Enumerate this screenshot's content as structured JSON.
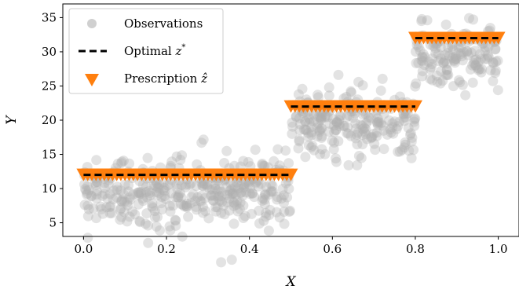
{
  "chart_data": {
    "type": "scatter",
    "xlabel": "X",
    "ylabel": "Y",
    "xlim": [
      -0.05,
      1.05
    ],
    "ylim": [
      3,
      37
    ],
    "xticks": [
      "0.0",
      "0.2",
      "0.4",
      "0.6",
      "0.8",
      "1.0"
    ],
    "yticks": [
      "5",
      "10",
      "15",
      "20",
      "25",
      "30",
      "35"
    ],
    "grid": false,
    "legend_position": "top-left",
    "series": [
      {
        "name": "Observations",
        "kind": "scatter",
        "color": "#b0b0b0",
        "note": "dense cloud of noisy points (~300 per segment, std ~2.5) around each optimal level"
      },
      {
        "name": "Optimal z*",
        "kind": "step-line",
        "color": "#000000",
        "linestyle": "dashed",
        "segments": [
          {
            "x0": 0.0,
            "x1": 0.5,
            "y": 12
          },
          {
            "x0": 0.5,
            "x1": 0.8,
            "y": 22
          },
          {
            "x0": 0.8,
            "x1": 1.0,
            "y": 32
          }
        ]
      },
      {
        "name": "Prescription ẑ",
        "kind": "markers",
        "marker": "down-triangle",
        "color": "#ff7f0e",
        "note": "prescriptions coincide with the optimal level on each segment",
        "segments": [
          {
            "x0": 0.0,
            "x1": 0.5,
            "y": 12
          },
          {
            "x0": 0.5,
            "x1": 0.8,
            "y": 22
          },
          {
            "x0": 0.8,
            "x1": 1.0,
            "y": 32
          }
        ]
      }
    ]
  },
  "legend": {
    "observations": "Observations",
    "optimal": "Optimal ",
    "optimal_symbol": "z",
    "optimal_sup": "*",
    "prescription": "Prescription ",
    "prescription_symbol": "ẑ"
  }
}
